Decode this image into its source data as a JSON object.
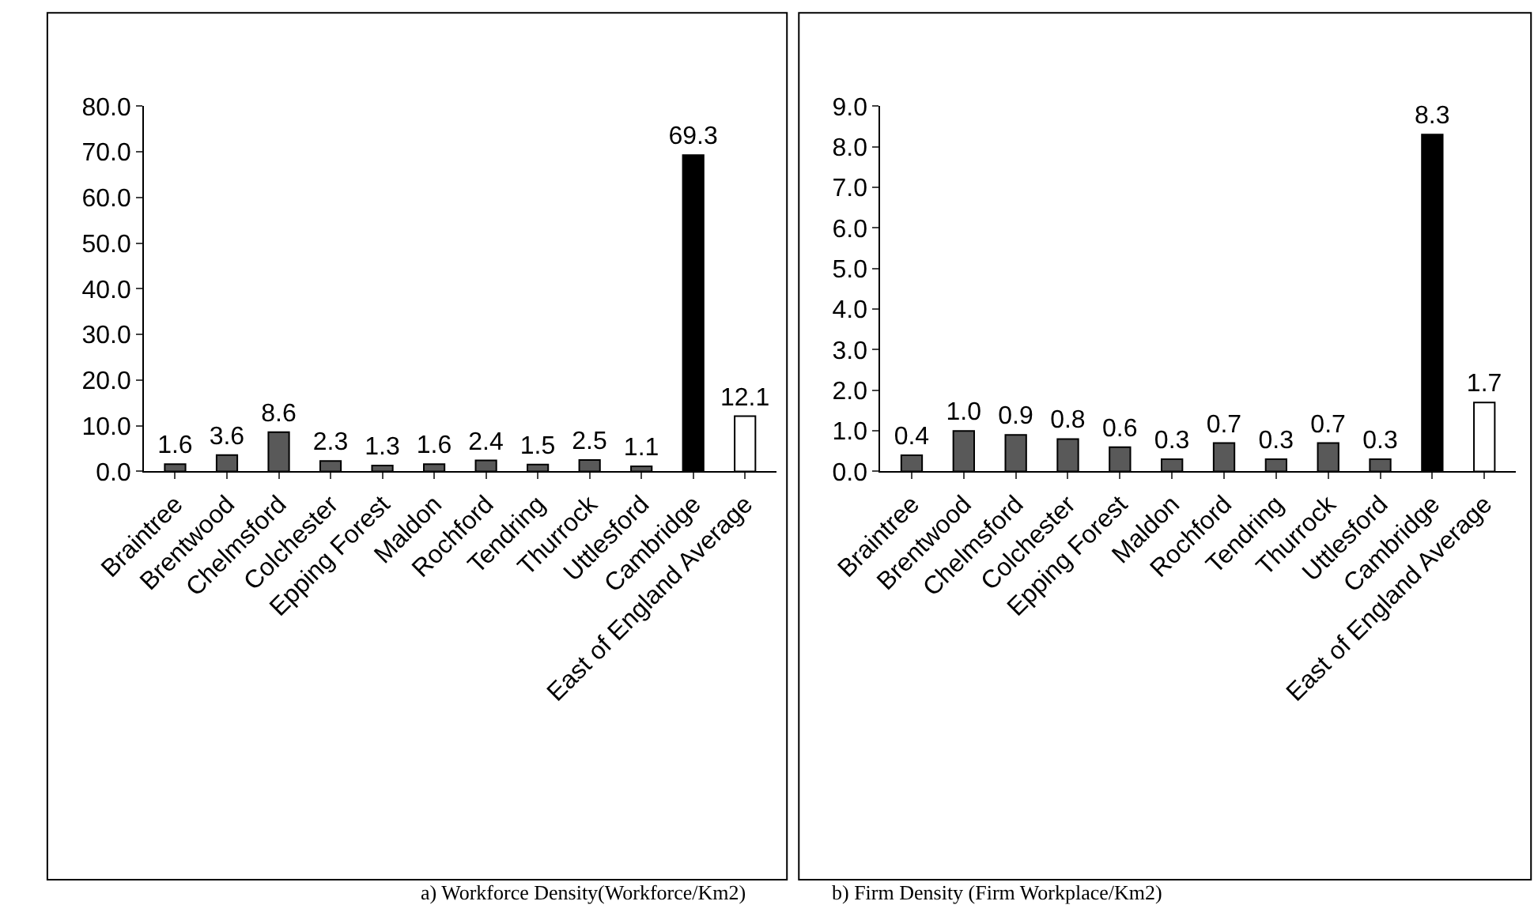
{
  "chart_data": [
    {
      "type": "bar",
      "title": "a) Workforce Density(Workforce/Km2)",
      "categories": [
        "Braintree",
        "Brentwood",
        "Chelmsford",
        "Colchester",
        "Epping Forest",
        "Maldon",
        "Rochford",
        "Tendring",
        "Thurrock",
        "Uttlesford",
        "Cambridge",
        "East of England Average"
      ],
      "values": [
        1.6,
        3.6,
        8.6,
        2.3,
        1.3,
        1.6,
        2.4,
        1.5,
        2.5,
        1.1,
        69.3,
        12.1
      ],
      "value_labels": [
        "1.6",
        "3.6",
        "8.6",
        "2.3",
        "1.3",
        "1.6",
        "2.4",
        "1.5",
        "2.5",
        "1.1",
        "69.3",
        "12.1"
      ],
      "colors": [
        "#595959",
        "#595959",
        "#595959",
        "#595959",
        "#595959",
        "#595959",
        "#595959",
        "#595959",
        "#595959",
        "#595959",
        "#000000",
        "#ffffff"
      ],
      "ylim": [
        0,
        80
      ],
      "yticks": [
        {
          "value": 0,
          "label": "0.0"
        },
        {
          "value": 10,
          "label": "10.0"
        },
        {
          "value": 20,
          "label": "20.0"
        },
        {
          "value": 30,
          "label": "30.0"
        },
        {
          "value": 40,
          "label": "40.0"
        },
        {
          "value": 50,
          "label": "50.0"
        },
        {
          "value": 60,
          "label": "60.0"
        },
        {
          "value": 70,
          "label": "70.0"
        },
        {
          "value": 80,
          "label": "80.0"
        }
      ]
    },
    {
      "type": "bar",
      "title": "b) Firm Density (Firm Workplace/Km2)",
      "categories": [
        "Braintree",
        "Brentwood",
        "Chelmsford",
        "Colchester",
        "Epping Forest",
        "Maldon",
        "Rochford",
        "Tendring",
        "Thurrock",
        "Uttlesford",
        "Cambridge",
        "East of England Average"
      ],
      "values": [
        0.4,
        1.0,
        0.9,
        0.8,
        0.6,
        0.3,
        0.7,
        0.3,
        0.7,
        0.3,
        8.3,
        1.7
      ],
      "value_labels": [
        "0.4",
        "1.0",
        "0.9",
        "0.8",
        "0.6",
        "0.3",
        "0.7",
        "0.3",
        "0.7",
        "0.3",
        "8.3",
        "1.7"
      ],
      "colors": [
        "#595959",
        "#595959",
        "#595959",
        "#595959",
        "#595959",
        "#595959",
        "#595959",
        "#595959",
        "#595959",
        "#595959",
        "#000000",
        "#ffffff"
      ],
      "ylim": [
        0,
        9
      ],
      "yticks": [
        {
          "value": 0,
          "label": "0.0"
        },
        {
          "value": 1,
          "label": "1.0"
        },
        {
          "value": 2,
          "label": "2.0"
        },
        {
          "value": 3,
          "label": "3.0"
        },
        {
          "value": 4,
          "label": "4.0"
        },
        {
          "value": 5,
          "label": "5.0"
        },
        {
          "value": 6,
          "label": "6.0"
        },
        {
          "value": 7,
          "label": "7.0"
        },
        {
          "value": 8,
          "label": "8.0"
        },
        {
          "value": 9,
          "label": "9.0"
        }
      ]
    }
  ]
}
